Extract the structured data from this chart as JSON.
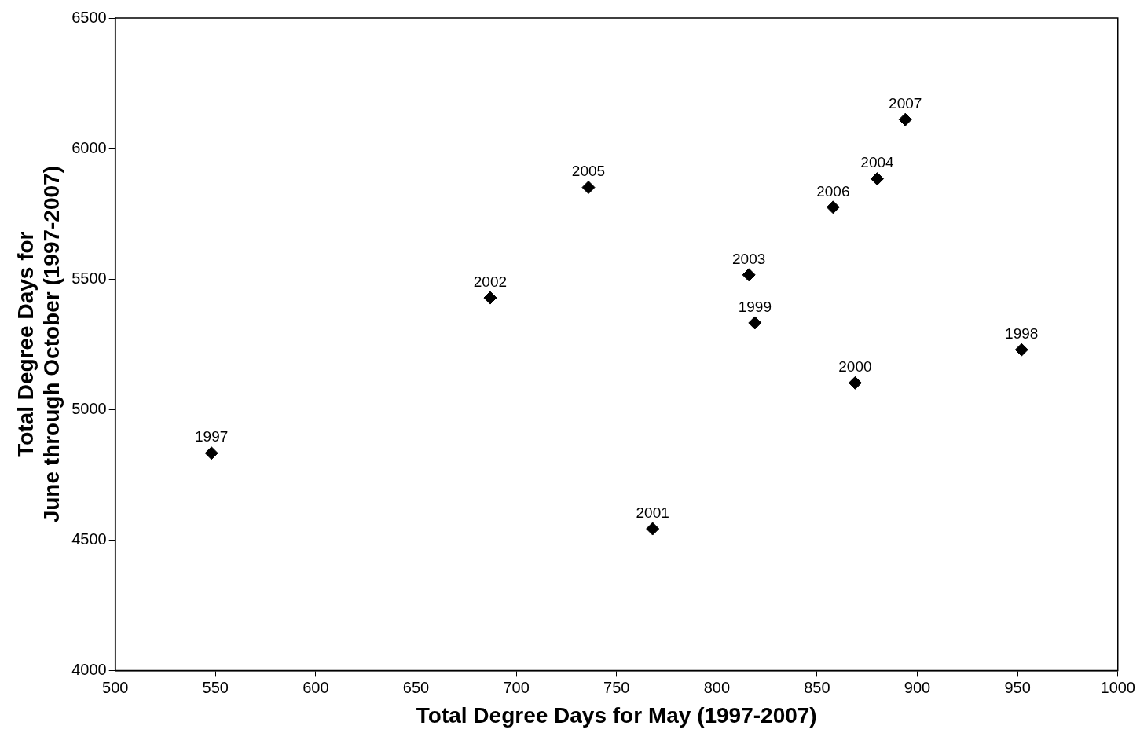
{
  "chart_data": {
    "type": "scatter",
    "xlabel": "Total Degree Days for May (1997-2007)",
    "ylabel": "Total Degree Days for\nJune through October (1997-2007)",
    "x": [
      548,
      952,
      819,
      869,
      768,
      687,
      816,
      880,
      736,
      858,
      894
    ],
    "values": [
      4833,
      5229,
      5332,
      5102,
      4543,
      5428,
      5516,
      5884,
      5851,
      5775,
      6111
    ],
    "annotations": [
      {
        "text": "1997",
        "x": 548,
        "y": 4833
      },
      {
        "text": "1998",
        "x": 952,
        "y": 5229
      },
      {
        "text": "1999",
        "x": 819,
        "y": 5332
      },
      {
        "text": "2000",
        "x": 869,
        "y": 5102
      },
      {
        "text": "2001",
        "x": 768,
        "y": 4543
      },
      {
        "text": "2002",
        "x": 687,
        "y": 5428
      },
      {
        "text": "2003",
        "x": 816,
        "y": 5516
      },
      {
        "text": "2004",
        "x": 880,
        "y": 5884
      },
      {
        "text": "2005",
        "x": 736,
        "y": 5851
      },
      {
        "text": "2006",
        "x": 858,
        "y": 5775
      },
      {
        "text": "2007",
        "x": 894,
        "y": 6111
      }
    ],
    "color": "#000000",
    "marker": "diamond",
    "xlim": [
      500,
      1000
    ],
    "xticks": [
      500,
      550,
      600,
      650,
      700,
      750,
      800,
      850,
      900,
      950,
      1000
    ],
    "ylim": [
      4000,
      6500
    ],
    "yticks": [
      4000,
      4500,
      5000,
      5500,
      6000,
      6500
    ],
    "grid": false,
    "legend": false
  }
}
